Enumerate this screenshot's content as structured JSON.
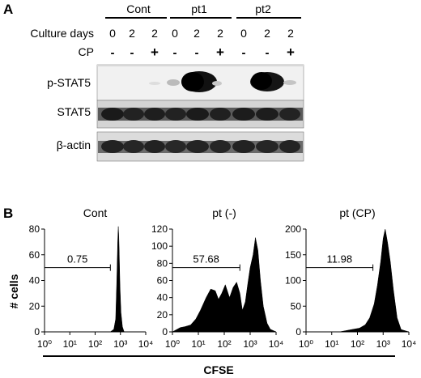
{
  "panel_a": {
    "letter": "A",
    "groups": [
      "Cont",
      "pt1",
      "pt2"
    ],
    "row_culture_label": "Culture days",
    "row_cp_label": "CP",
    "culture_days": [
      "0",
      "2",
      "2",
      "0",
      "2",
      "2",
      "0",
      "2",
      "2"
    ],
    "cp_values": [
      "-",
      "-",
      "+",
      "-",
      "-",
      "+",
      "-",
      "-",
      "+"
    ],
    "blot_labels": [
      "p-STAT5",
      "STAT5",
      "β-actin"
    ]
  },
  "panel_b": {
    "letter": "B",
    "y_axis_label": "# cells",
    "x_axis_label": "CFSE",
    "xtick_labels": [
      "10⁰",
      "10¹",
      "10²",
      "10³",
      "10⁴"
    ]
  },
  "chart_data": [
    {
      "type": "area",
      "title": "Cont",
      "xlabel": "CFSE",
      "ylabel": "# cells",
      "xscale": "log",
      "xlim": [
        1,
        10000
      ],
      "ylim": [
        0,
        80
      ],
      "yticks": [
        "0",
        "20",
        "40",
        "60",
        "80"
      ],
      "gate_label": "0.75",
      "gate_range": [
        1,
        400
      ],
      "x": [
        1,
        100,
        400,
        550,
        650,
        720,
        780,
        820,
        860,
        900,
        960,
        1050,
        1200,
        1400,
        10000
      ],
      "values": [
        0,
        0,
        0,
        2,
        10,
        40,
        70,
        82,
        75,
        60,
        35,
        15,
        4,
        0,
        0
      ]
    },
    {
      "type": "area",
      "title": "pt (-)",
      "xlabel": "CFSE",
      "ylabel": "",
      "xscale": "log",
      "xlim": [
        1,
        10000
      ],
      "ylim": [
        0,
        120
      ],
      "yticks": [
        "0",
        "20",
        "40",
        "60",
        "80",
        "100",
        "120"
      ],
      "gate_label": "57.68",
      "gate_range": [
        1,
        400
      ],
      "x": [
        1,
        2,
        3,
        5,
        8,
        12,
        20,
        30,
        45,
        60,
        80,
        110,
        160,
        220,
        300,
        400,
        500,
        650,
        800,
        1000,
        1300,
        1600,
        2000,
        2500,
        3200,
        4500,
        6000,
        10000
      ],
      "values": [
        0,
        5,
        6,
        8,
        15,
        25,
        40,
        50,
        48,
        38,
        45,
        55,
        40,
        52,
        58,
        45,
        25,
        35,
        55,
        75,
        90,
        110,
        95,
        60,
        30,
        10,
        3,
        0
      ]
    },
    {
      "type": "area",
      "title": "pt (CP)",
      "xlabel": "CFSE",
      "ylabel": "",
      "xscale": "log",
      "xlim": [
        1,
        10000
      ],
      "ylim": [
        0,
        220
      ],
      "yticks": [
        "0",
        "50",
        "100",
        "150",
        "200"
      ],
      "gate_label": "11.98",
      "gate_range": [
        1,
        400
      ],
      "x": [
        1,
        20,
        60,
        120,
        200,
        300,
        450,
        600,
        800,
        1000,
        1200,
        1500,
        1900,
        2500,
        3500,
        5000,
        10000
      ],
      "values": [
        0,
        0,
        5,
        8,
        15,
        30,
        60,
        100,
        150,
        200,
        220,
        190,
        150,
        90,
        30,
        5,
        0
      ]
    }
  ]
}
